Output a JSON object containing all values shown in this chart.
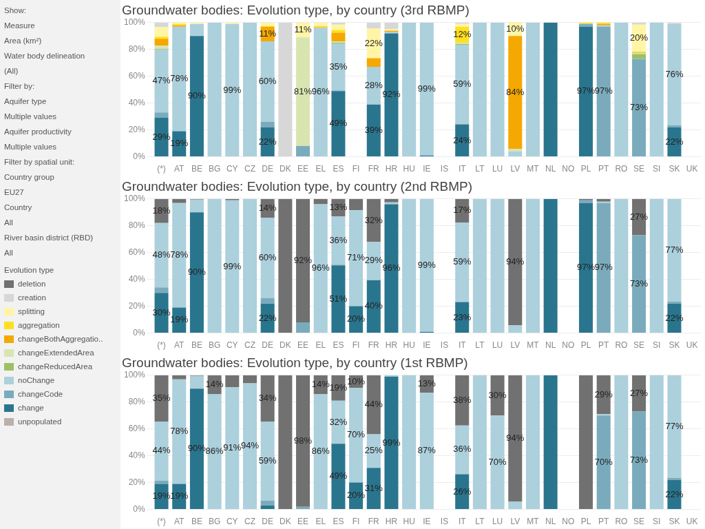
{
  "chart_data": [
    {
      "type": "other",
      "annotations": [
        "Show:",
        "Measure",
        "Area (km²)",
        "Water body delineation",
        "(All)",
        "Filter by:",
        "Aquifer type",
        "Multiple values",
        "Aquifer productivity",
        "Multiple values",
        "Filter by spatial unit:",
        "Country group",
        "EU27",
        "Country",
        "All",
        "River basin district (RBD)",
        "All"
      ]
    },
    {
      "type": "bar",
      "title": "Groundwater bodies: Evolution type, by country (3rd RBMP)",
      "stacked": true,
      "grid": "y",
      "legend": "left",
      "legend_title": "Evolution type",
      "categories": [
        "(*)",
        "AT",
        "BE",
        "BG",
        "CY",
        "CZ",
        "DE",
        "DK",
        "EE",
        "EL",
        "ES",
        "FI",
        "FR",
        "HR",
        "HU",
        "IE",
        "IS",
        "IT",
        "LT",
        "LU",
        "LV",
        "MT",
        "NL",
        "NO",
        "PL",
        "PT",
        "RO",
        "SE",
        "SI",
        "SK",
        "UK"
      ],
      "ylim": [
        0,
        100
      ],
      "yticks": [
        {
          "value": 0,
          "label": "0%"
        },
        {
          "value": 20,
          "label": "20%"
        },
        {
          "value": 40,
          "label": "40%"
        },
        {
          "value": 60,
          "label": "60%"
        },
        {
          "value": 80,
          "label": "80%"
        },
        {
          "value": 100,
          "label": "100%"
        }
      ],
      "series": [
        {
          "name": "unpopulated",
          "color": "#bab0ac",
          "values": [
            null,
            null,
            null,
            null,
            null,
            null,
            null,
            null,
            null,
            null,
            null,
            null,
            null,
            null,
            null,
            null,
            null,
            null,
            null,
            null,
            null,
            null,
            null,
            null,
            null,
            null,
            null,
            null,
            null,
            null,
            null
          ]
        },
        {
          "name": "change",
          "color": "#2a758e",
          "values": [
            29,
            19,
            90,
            null,
            null,
            null,
            22,
            null,
            null,
            null,
            49,
            null,
            39,
            92,
            null,
            1,
            null,
            24,
            null,
            null,
            null,
            null,
            100,
            null,
            97,
            null,
            null,
            null,
            null,
            22,
            null
          ],
          "value_labels": [
            "29%",
            "19%",
            "90%",
            null,
            null,
            null,
            "22%",
            null,
            null,
            null,
            "49%",
            null,
            "39%",
            "92%",
            null,
            null,
            null,
            "24%",
            null,
            null,
            null,
            null,
            null,
            null,
            "97%",
            null,
            null,
            null,
            null,
            "22%",
            null
          ]
        },
        {
          "name": "changeCode",
          "color": "#7aabbd",
          "values": [
            4,
            null,
            null,
            null,
            null,
            null,
            4,
            null,
            8,
            null,
            0.5,
            null,
            null,
            null,
            null,
            null,
            null,
            0.5,
            null,
            null,
            null,
            null,
            null,
            null,
            2,
            97,
            null,
            73,
            null,
            1.5,
            null
          ],
          "value_labels": [
            null,
            null,
            null,
            null,
            null,
            null,
            null,
            null,
            null,
            null,
            null,
            null,
            null,
            null,
            null,
            null,
            null,
            null,
            null,
            null,
            null,
            null,
            null,
            null,
            null,
            "97%",
            null,
            "73%",
            null,
            null,
            null
          ]
        },
        {
          "name": "noChange",
          "color": "#acd0dc",
          "values": [
            47,
            78,
            9,
            100,
            99,
            100,
            60,
            null,
            null,
            96,
            35,
            null,
            28,
            1,
            100,
            99,
            null,
            59,
            100,
            100,
            4,
            100,
            null,
            null,
            null,
            1,
            100,
            null,
            100,
            75.5,
            null
          ],
          "value_labels": [
            "47%",
            "78%",
            null,
            null,
            "99%",
            null,
            "60%",
            null,
            null,
            "96%",
            "35%",
            null,
            "28%",
            null,
            null,
            "99%",
            null,
            "59%",
            null,
            null,
            null,
            null,
            null,
            null,
            null,
            null,
            null,
            null,
            null,
            "76%",
            null
          ]
        },
        {
          "name": "changeReducedArea",
          "color": "#9cc165",
          "values": [
            0.5,
            null,
            null,
            null,
            null,
            null,
            null,
            null,
            null,
            null,
            0.5,
            null,
            null,
            null,
            null,
            null,
            null,
            0.5,
            null,
            null,
            null,
            null,
            null,
            null,
            null,
            null,
            null,
            3.5,
            null,
            null,
            null
          ]
        },
        {
          "name": "changeExtendedArea",
          "color": "#d8e5b0",
          "values": [
            2.5,
            null,
            null,
            null,
            null,
            null,
            null,
            null,
            81,
            null,
            1,
            null,
            null,
            null,
            null,
            null,
            null,
            1,
            null,
            null,
            2,
            null,
            null,
            null,
            null,
            null,
            null,
            1,
            null,
            null,
            null
          ],
          "value_labels": [
            null,
            null,
            null,
            null,
            null,
            null,
            null,
            null,
            "81%",
            null,
            null,
            null,
            null,
            null,
            null,
            null,
            null,
            null,
            null,
            null,
            null,
            null,
            null,
            null,
            null,
            null,
            null,
            null,
            null,
            null,
            null
          ]
        },
        {
          "name": "changeBothAggregatio..",
          "color": "#f5a800",
          "values": [
            5,
            1,
            null,
            null,
            null,
            null,
            11,
            null,
            null,
            0.5,
            6.5,
            null,
            6.5,
            1,
            null,
            null,
            null,
            null,
            null,
            null,
            84,
            null,
            null,
            null,
            null,
            1,
            null,
            0.5,
            null,
            null,
            null
          ],
          "value_labels": [
            null,
            null,
            null,
            null,
            null,
            null,
            "11%",
            null,
            null,
            null,
            null,
            null,
            null,
            null,
            null,
            null,
            null,
            null,
            null,
            null,
            "84%",
            null,
            null,
            null,
            null,
            null,
            null,
            null,
            null,
            null,
            null
          ]
        },
        {
          "name": "aggregation",
          "color": "#ffe01f",
          "values": [
            1.5,
            1,
            null,
            null,
            null,
            null,
            0.5,
            null,
            null,
            1,
            2,
            null,
            null,
            null,
            null,
            null,
            null,
            12,
            null,
            null,
            null,
            null,
            null,
            null,
            1,
            1,
            null,
            0.5,
            null,
            null,
            null
          ],
          "value_labels": [
            null,
            null,
            null,
            null,
            null,
            null,
            null,
            null,
            null,
            null,
            null,
            null,
            null,
            null,
            null,
            null,
            null,
            "12%",
            null,
            null,
            null,
            null,
            null,
            null,
            null,
            null,
            null,
            null,
            null,
            null,
            null
          ]
        },
        {
          "name": "splitting",
          "color": "#fff5a5",
          "values": [
            7,
            1,
            1,
            null,
            1,
            null,
            2.5,
            null,
            11,
            2.5,
            4,
            null,
            22,
            1,
            null,
            null,
            null,
            2,
            null,
            null,
            10,
            null,
            null,
            null,
            null,
            null,
            null,
            20,
            null,
            null,
            null
          ],
          "value_labels": [
            null,
            null,
            null,
            null,
            null,
            null,
            null,
            null,
            "11%",
            null,
            null,
            null,
            "22%",
            null,
            null,
            null,
            null,
            null,
            null,
            null,
            "10%",
            null,
            null,
            null,
            null,
            null,
            null,
            "20%",
            null,
            null,
            null
          ]
        },
        {
          "name": "creation",
          "color": "#d7d7d7",
          "values": [
            3.5,
            null,
            null,
            null,
            null,
            null,
            null,
            100,
            null,
            null,
            1.5,
            null,
            4.5,
            5,
            null,
            null,
            null,
            1,
            null,
            null,
            null,
            null,
            null,
            null,
            null,
            null,
            null,
            1.5,
            null,
            1,
            null
          ]
        },
        {
          "name": "deletion",
          "color": "#717171",
          "values": [
            null,
            null,
            null,
            null,
            null,
            null,
            null,
            null,
            null,
            null,
            null,
            null,
            null,
            null,
            null,
            null,
            null,
            null,
            null,
            null,
            null,
            null,
            null,
            null,
            null,
            null,
            null,
            null,
            null,
            null,
            null
          ]
        }
      ]
    },
    {
      "type": "bar",
      "title": "Groundwater bodies: Evolution type, by country (2nd RBMP)",
      "stacked": true,
      "grid": "y",
      "categories": [
        "(*)",
        "AT",
        "BE",
        "BG",
        "CY",
        "CZ",
        "DE",
        "DK",
        "EE",
        "EL",
        "ES",
        "FI",
        "FR",
        "HR",
        "HU",
        "IE",
        "IS",
        "IT",
        "LT",
        "LU",
        "LV",
        "MT",
        "NL",
        "NO",
        "PL",
        "PT",
        "RO",
        "SE",
        "SI",
        "SK",
        "UK"
      ],
      "ylim": [
        0,
        100
      ],
      "yticks": [
        {
          "value": 0,
          "label": "0%"
        },
        {
          "value": 20,
          "label": "20%"
        },
        {
          "value": 40,
          "label": "40%"
        },
        {
          "value": 60,
          "label": "60%"
        },
        {
          "value": 80,
          "label": "80%"
        },
        {
          "value": 100,
          "label": "100%"
        }
      ],
      "series": [
        {
          "color": "#2a758e",
          "values": [
            30,
            19,
            90,
            null,
            null,
            null,
            22,
            null,
            null,
            null,
            50.5,
            20,
            39.5,
            96,
            null,
            1,
            null,
            23,
            null,
            null,
            null,
            null,
            100,
            null,
            97,
            null,
            null,
            null,
            null,
            22,
            null
          ],
          "value_labels": [
            "30%",
            "19%",
            "90%",
            null,
            null,
            null,
            "22%",
            null,
            null,
            null,
            "51%",
            "20%",
            "40%",
            "96%",
            null,
            null,
            null,
            "23%",
            null,
            null,
            null,
            null,
            null,
            null,
            "97%",
            null,
            null,
            null,
            null,
            "22%",
            null
          ]
        },
        {
          "color": "#7aabbd",
          "values": [
            4,
            null,
            null,
            null,
            null,
            null,
            4,
            null,
            8,
            null,
            0.5,
            0.5,
            null,
            null,
            null,
            null,
            null,
            0.5,
            null,
            null,
            null,
            null,
            null,
            null,
            2,
            97,
            null,
            73,
            null,
            1.5,
            null
          ],
          "value_labels": [
            null,
            null,
            null,
            null,
            null,
            null,
            null,
            null,
            null,
            null,
            null,
            null,
            null,
            null,
            null,
            null,
            null,
            null,
            null,
            null,
            null,
            null,
            null,
            null,
            null,
            "97%",
            null,
            "73%",
            null,
            null,
            null
          ]
        },
        {
          "color": "#acd0dc",
          "values": [
            48,
            78,
            9.5,
            100,
            99,
            100,
            60,
            null,
            null,
            96,
            36,
            71,
            28.5,
            1.5,
            100,
            99,
            null,
            59,
            100,
            100,
            6,
            100,
            null,
            null,
            null,
            1,
            100,
            null,
            100,
            76.5,
            null
          ],
          "value_labels": [
            "48%",
            "78%",
            null,
            null,
            "99%",
            null,
            "60%",
            null,
            null,
            "96%",
            "36%",
            "71%",
            "29%",
            null,
            null,
            "99%",
            null,
            "59%",
            null,
            null,
            null,
            null,
            null,
            null,
            null,
            null,
            null,
            null,
            null,
            "77%",
            null
          ]
        },
        {
          "color": "#717171",
          "values": [
            18,
            3,
            0.5,
            null,
            1,
            null,
            14,
            100,
            92,
            4,
            13,
            8.5,
            32,
            2.5,
            null,
            null,
            null,
            17.5,
            null,
            null,
            94,
            null,
            null,
            null,
            1,
            2,
            null,
            27,
            null,
            null,
            null
          ],
          "value_labels": [
            "18%",
            null,
            null,
            null,
            null,
            null,
            "14%",
            null,
            "92%",
            null,
            "13%",
            null,
            "32%",
            null,
            null,
            null,
            null,
            "17%",
            null,
            null,
            "94%",
            null,
            null,
            null,
            null,
            null,
            null,
            "27%",
            null,
            null,
            null
          ]
        }
      ]
    },
    {
      "type": "bar",
      "title": "Groundwater bodies: Evolution type, by country (1st RBMP)",
      "stacked": true,
      "grid": "y",
      "categories": [
        "(*)",
        "AT",
        "BE",
        "BG",
        "CY",
        "CZ",
        "DE",
        "DK",
        "EE",
        "EL",
        "ES",
        "FI",
        "FR",
        "HR",
        "HU",
        "IE",
        "IS",
        "IT",
        "LT",
        "LU",
        "LV",
        "MT",
        "NL",
        "NO",
        "PL",
        "PT",
        "RO",
        "SE",
        "SI",
        "SK",
        "UK"
      ],
      "ylim": [
        0,
        100
      ],
      "yticks": [
        {
          "value": 0,
          "label": "0%"
        },
        {
          "value": 20,
          "label": "20%"
        },
        {
          "value": 40,
          "label": "40%"
        },
        {
          "value": 60,
          "label": "60%"
        },
        {
          "value": 80,
          "label": "80%"
        },
        {
          "value": 100,
          "label": "100%"
        }
      ],
      "series": [
        {
          "color": "#2a758e",
          "values": [
            19,
            19,
            90,
            null,
            null,
            null,
            3,
            null,
            null,
            null,
            49,
            20,
            31,
            99,
            null,
            null,
            null,
            26,
            null,
            null,
            null,
            null,
            100,
            null,
            null,
            null,
            null,
            null,
            null,
            22,
            null
          ],
          "value_labels": [
            "19%",
            "19%",
            "90%",
            null,
            null,
            null,
            null,
            null,
            null,
            null,
            "49%",
            "20%",
            "31%",
            "99%",
            null,
            null,
            null,
            "26%",
            null,
            null,
            null,
            null,
            null,
            null,
            null,
            null,
            null,
            null,
            null,
            "22%",
            null
          ]
        },
        {
          "color": "#7aabbd",
          "values": [
            2.5,
            null,
            null,
            null,
            null,
            null,
            3.5,
            null,
            2,
            null,
            null,
            0.5,
            null,
            null,
            null,
            null,
            null,
            0.5,
            null,
            null,
            null,
            null,
            null,
            null,
            null,
            70,
            null,
            73,
            null,
            1.5,
            null
          ],
          "value_labels": [
            null,
            null,
            null,
            null,
            null,
            null,
            null,
            null,
            null,
            null,
            null,
            null,
            null,
            null,
            null,
            null,
            null,
            null,
            null,
            null,
            null,
            null,
            null,
            null,
            null,
            "70%",
            null,
            "73%",
            null,
            null,
            null
          ]
        },
        {
          "color": "#acd0dc",
          "values": [
            44,
            78,
            9.5,
            86,
            91,
            94,
            59,
            null,
            null,
            86,
            32,
            70,
            25,
            1,
            100,
            87,
            null,
            36,
            100,
            70,
            6,
            100,
            null,
            null,
            null,
            1,
            100,
            null,
            100,
            76.5,
            null
          ],
          "value_labels": [
            "44%",
            "78%",
            null,
            "86%",
            "91%",
            "94%",
            "59%",
            null,
            null,
            "86%",
            "32%",
            "70%",
            "25%",
            null,
            null,
            "87%",
            null,
            "36%",
            null,
            "70%",
            null,
            null,
            null,
            null,
            null,
            null,
            null,
            null,
            null,
            "77%",
            null
          ]
        },
        {
          "color": "#717171",
          "values": [
            34.5,
            3,
            0.5,
            14,
            9,
            6,
            34.5,
            100,
            98,
            14,
            19,
            9.5,
            44,
            null,
            null,
            13,
            null,
            37.5,
            null,
            30,
            94,
            null,
            null,
            null,
            100,
            29,
            null,
            27,
            null,
            null,
            null
          ],
          "value_labels": [
            "35%",
            null,
            null,
            "14%",
            null,
            null,
            "34%",
            null,
            "98%",
            "14%",
            "19%",
            "10%",
            "44%",
            null,
            null,
            "13%",
            null,
            "38%",
            null,
            "30%",
            "94%",
            null,
            null,
            null,
            null,
            "29%",
            null,
            "27%",
            null,
            null,
            null
          ]
        }
      ]
    }
  ]
}
